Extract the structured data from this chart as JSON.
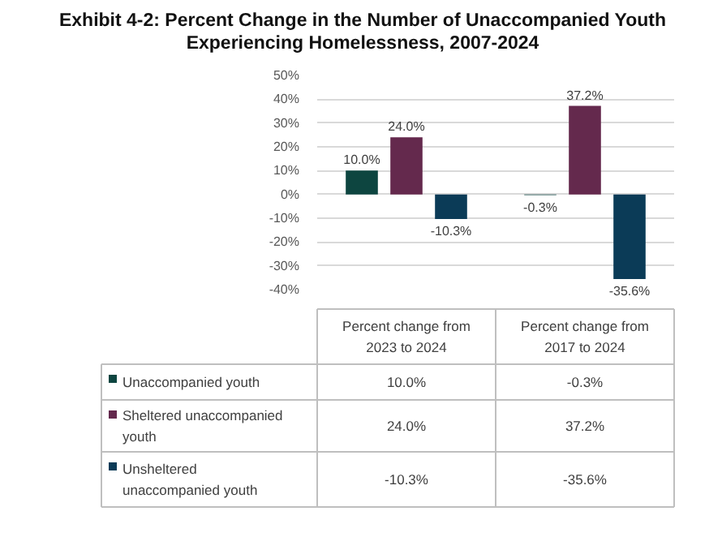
{
  "chart_data": {
    "type": "bar",
    "title": "Exhibit 4-2: Percent Change in the Number of Unaccompanied Youth Experiencing Homelessness, 2007-2024",
    "categories": [
      "Percent change from 2023 to 2024",
      "Percent change from 2017 to 2024"
    ],
    "series": [
      {
        "name": "Unaccompanied youth",
        "color": "#0d4540",
        "values": [
          10.0,
          -0.3
        ],
        "value_labels": [
          "10.0%",
          "-0.3%"
        ]
      },
      {
        "name": "Sheltered unaccompanied youth",
        "color": "#64294d",
        "values": [
          24.0,
          37.2
        ],
        "value_labels": [
          "24.0%",
          "37.2%"
        ]
      },
      {
        "name": "Unsheltered unaccompanied youth",
        "color": "#0b3b57",
        "values": [
          -10.3,
          -35.6
        ],
        "value_labels": [
          "-10.3%",
          "-35.6%"
        ]
      }
    ],
    "ylim": [
      -40,
      50
    ],
    "yticks": [
      {
        "value": -40,
        "label": "-40%"
      },
      {
        "value": -30,
        "label": "-30%"
      },
      {
        "value": -20,
        "label": "-20%"
      },
      {
        "value": -10,
        "label": "-10%"
      },
      {
        "value": 0,
        "label": "0%"
      },
      {
        "value": 10,
        "label": "10%"
      },
      {
        "value": 20,
        "label": "20%"
      },
      {
        "value": 30,
        "label": "30%"
      },
      {
        "value": 40,
        "label": "40%"
      },
      {
        "value": 50,
        "label": "50%"
      }
    ],
    "grid": "y",
    "legend": "bottom left"
  }
}
